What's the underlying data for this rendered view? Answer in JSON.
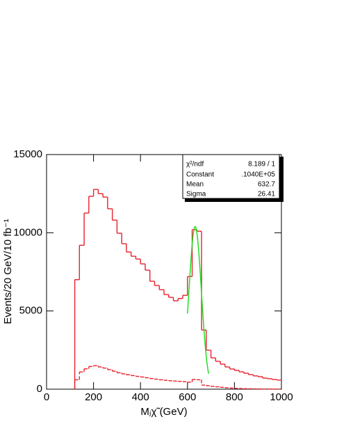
{
  "chart_data": {
    "type": "histogram",
    "xlabel": "Mⱼχ̃ (GeV)",
    "ylabel": "Events/20 GeV/10 fb⁻¹",
    "xlim": [
      0,
      1000
    ],
    "xticks": [
      0,
      200,
      400,
      600,
      800,
      1000
    ],
    "ylim": [
      0,
      15000
    ],
    "yticks": [
      0,
      5000,
      10000,
      15000
    ],
    "bins": [
      120,
      140,
      160,
      180,
      200,
      220,
      240,
      260,
      280,
      300,
      320,
      340,
      360,
      380,
      400,
      420,
      440,
      460,
      480,
      500,
      520,
      540,
      560,
      580,
      600,
      620,
      640,
      660,
      680,
      700,
      720,
      740,
      760,
      780,
      800,
      820,
      840,
      860,
      880,
      900,
      920,
      940,
      960,
      980,
      1000
    ],
    "series": [
      {
        "color": "#e8202a",
        "style": "solid",
        "values": [
          7000,
          9200,
          11260,
          12330,
          12770,
          12500,
          12280,
          11530,
          10810,
          9970,
          9300,
          8770,
          8500,
          8320,
          8010,
          7610,
          6900,
          6630,
          6360,
          6050,
          5870,
          5650,
          5800,
          6000,
          7200,
          10200,
          10100,
          3780,
          2490,
          2000,
          1780,
          1600,
          1420,
          1290,
          1200,
          1110,
          1020,
          930,
          850,
          800,
          710,
          670,
          620,
          580
        ]
      },
      {
        "color": "#e8202a",
        "style": "dashed",
        "values": [
          600,
          1100,
          1300,
          1450,
          1500,
          1420,
          1350,
          1250,
          1150,
          1050,
          980,
          920,
          870,
          820,
          780,
          730,
          680,
          640,
          600,
          570,
          540,
          520,
          500,
          480,
          450,
          620,
          600,
          260,
          220,
          180,
          150,
          120,
          90,
          70,
          50,
          40,
          30,
          25,
          20,
          15,
          10,
          10,
          5,
          5
        ]
      }
    ],
    "fit": {
      "color": "#22dd22",
      "range": [
        600,
        690
      ],
      "chi2_label": "χ²/ndf",
      "chi2_text": "8.189   /   1",
      "constant_label": "Constant",
      "constant": {
        "value": 10400,
        "label": ".1040E+05"
      },
      "mean_label": "Mean",
      "mean": 632.7,
      "sigma_label": "Sigma",
      "sigma": 26.41
    }
  }
}
